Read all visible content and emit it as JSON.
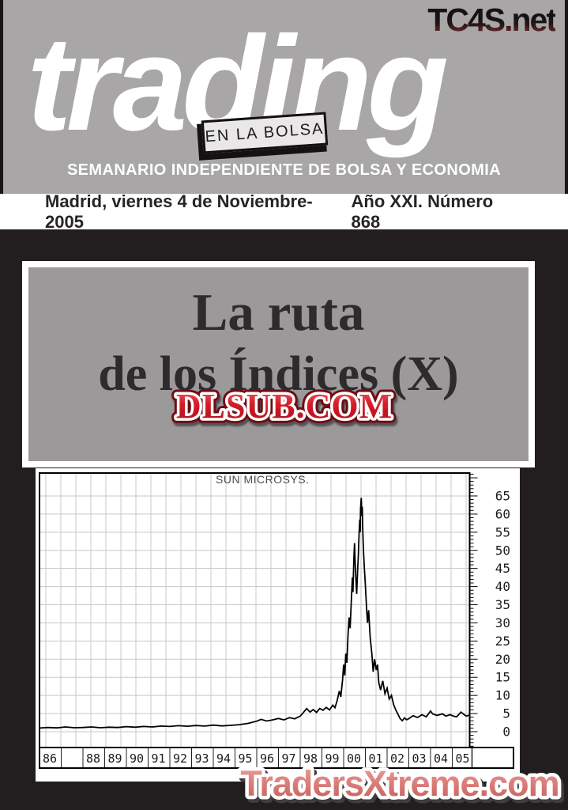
{
  "header": {
    "site": "TC4S.net",
    "logo": "trading",
    "box_label": "EN LA BOLSA",
    "tagline": "SEMANARIO INDEPENDIENTE DE BOLSA Y ECONOMIA",
    "bg_color": "#a8a6a7"
  },
  "dateline": {
    "left": "Madrid, viernes 4 de Noviembre-2005",
    "right": "Año XXI. Número 868"
  },
  "cover": {
    "title_line1": "La ruta",
    "title_line2": "de los Índices (X)",
    "box_color": "#9b999a",
    "watermark": "DLSUB.COM",
    "watermark_color": "#c4141f"
  },
  "footer": {
    "watermark": "TradersXtreme.com",
    "watermark_color": "#d97a76"
  },
  "chart_data": {
    "type": "line",
    "title": "SUN MICROSYS.",
    "xlabel": "",
    "ylabel": "",
    "grid": true,
    "x_range": [
      1986,
      2005.8
    ],
    "y_range": [
      -4.4,
      71.3
    ],
    "y_ticks": [
      65,
      60,
      55,
      50,
      45,
      40,
      35,
      30,
      25,
      20,
      15,
      10,
      5,
      0
    ],
    "x_ticks": [
      "86",
      "",
      "88",
      "89",
      "90",
      "91",
      "92",
      "93",
      "94",
      "95",
      "96",
      "97",
      "98",
      "99",
      "00",
      "01",
      "02",
      "03",
      "04",
      "05"
    ],
    "line_color": "#000000",
    "grid_color": "#c8c8c8",
    "series": [
      {
        "name": "SUN MICROSYS.",
        "points": [
          [
            1986.0,
            1.0
          ],
          [
            1986.4,
            1.15
          ],
          [
            1986.8,
            1.05
          ],
          [
            1987.2,
            1.3
          ],
          [
            1987.6,
            1.1
          ],
          [
            1988.0,
            1.15
          ],
          [
            1988.4,
            1.3
          ],
          [
            1988.8,
            1.1
          ],
          [
            1989.2,
            1.25
          ],
          [
            1989.6,
            1.15
          ],
          [
            1990.0,
            1.4
          ],
          [
            1990.4,
            1.25
          ],
          [
            1990.8,
            1.45
          ],
          [
            1991.2,
            1.3
          ],
          [
            1991.6,
            1.55
          ],
          [
            1992.0,
            1.45
          ],
          [
            1992.4,
            1.65
          ],
          [
            1992.8,
            1.5
          ],
          [
            1993.2,
            1.7
          ],
          [
            1993.6,
            1.55
          ],
          [
            1994.0,
            1.8
          ],
          [
            1994.4,
            1.6
          ],
          [
            1994.8,
            1.75
          ],
          [
            1995.2,
            1.95
          ],
          [
            1995.6,
            2.3
          ],
          [
            1996.0,
            2.9
          ],
          [
            1996.2,
            3.4
          ],
          [
            1996.45,
            2.95
          ],
          [
            1996.7,
            3.2
          ],
          [
            1997.0,
            3.65
          ],
          [
            1997.25,
            3.25
          ],
          [
            1997.5,
            3.85
          ],
          [
            1997.75,
            3.55
          ],
          [
            1998.0,
            4.3
          ],
          [
            1998.15,
            5.3
          ],
          [
            1998.3,
            6.4
          ],
          [
            1998.45,
            5.4
          ],
          [
            1998.6,
            6.1
          ],
          [
            1998.75,
            5.3
          ],
          [
            1998.9,
            6.4
          ],
          [
            1999.05,
            5.9
          ],
          [
            1999.2,
            6.7
          ],
          [
            1999.35,
            6.0
          ],
          [
            1999.5,
            7.3
          ],
          [
            1999.6,
            6.6
          ],
          [
            1999.7,
            8.6
          ],
          [
            1999.8,
            11.2
          ],
          [
            1999.87,
            9.6
          ],
          [
            1999.95,
            14.2
          ],
          [
            2000.0,
            18.5
          ],
          [
            2000.05,
            15.5
          ],
          [
            2000.1,
            21.5
          ],
          [
            2000.15,
            19.0
          ],
          [
            2000.2,
            26.5
          ],
          [
            2000.25,
            31.5
          ],
          [
            2000.3,
            28.5
          ],
          [
            2000.36,
            37.0
          ],
          [
            2000.4,
            42.5
          ],
          [
            2000.43,
            38.5
          ],
          [
            2000.47,
            47.5
          ],
          [
            2000.5,
            52.0
          ],
          [
            2000.53,
            46.5
          ],
          [
            2000.56,
            42.5
          ],
          [
            2000.6,
            38.0
          ],
          [
            2000.64,
            44.0
          ],
          [
            2000.68,
            49.0
          ],
          [
            2000.71,
            54.5
          ],
          [
            2000.74,
            58.5
          ],
          [
            2000.76,
            55.0
          ],
          [
            2000.78,
            61.5
          ],
          [
            2000.81,
            64.5
          ],
          [
            2000.84,
            59.5
          ],
          [
            2000.86,
            62.0
          ],
          [
            2000.88,
            55.5
          ],
          [
            2000.91,
            50.5
          ],
          [
            2000.95,
            45.5
          ],
          [
            2001.0,
            40.5
          ],
          [
            2001.05,
            34.5
          ],
          [
            2001.1,
            30.0
          ],
          [
            2001.15,
            33.5
          ],
          [
            2001.22,
            26.0
          ],
          [
            2001.3,
            21.5
          ],
          [
            2001.36,
            16.5
          ],
          [
            2001.42,
            20.0
          ],
          [
            2001.5,
            17.0
          ],
          [
            2001.56,
            18.5
          ],
          [
            2001.62,
            13.5
          ],
          [
            2001.7,
            11.5
          ],
          [
            2001.8,
            14.0
          ],
          [
            2001.9,
            10.5
          ],
          [
            2002.0,
            12.0
          ],
          [
            2002.1,
            9.0
          ],
          [
            2002.2,
            10.0
          ],
          [
            2002.3,
            7.5
          ],
          [
            2002.4,
            6.0
          ],
          [
            2002.5,
            4.8
          ],
          [
            2002.6,
            3.6
          ],
          [
            2002.7,
            3.0
          ],
          [
            2002.8,
            3.8
          ],
          [
            2002.9,
            3.3
          ],
          [
            2003.0,
            3.6
          ],
          [
            2003.2,
            4.4
          ],
          [
            2003.4,
            3.9
          ],
          [
            2003.6,
            4.7
          ],
          [
            2003.8,
            4.1
          ],
          [
            2004.0,
            5.7
          ],
          [
            2004.1,
            4.9
          ],
          [
            2004.3,
            4.5
          ],
          [
            2004.55,
            4.9
          ],
          [
            2004.7,
            4.3
          ],
          [
            2004.9,
            4.7
          ],
          [
            2005.05,
            4.3
          ],
          [
            2005.2,
            4.1
          ],
          [
            2005.4,
            5.4
          ],
          [
            2005.55,
            4.7
          ],
          [
            2005.65,
            4.3
          ],
          [
            2005.8,
            4.6
          ]
        ]
      }
    ]
  }
}
